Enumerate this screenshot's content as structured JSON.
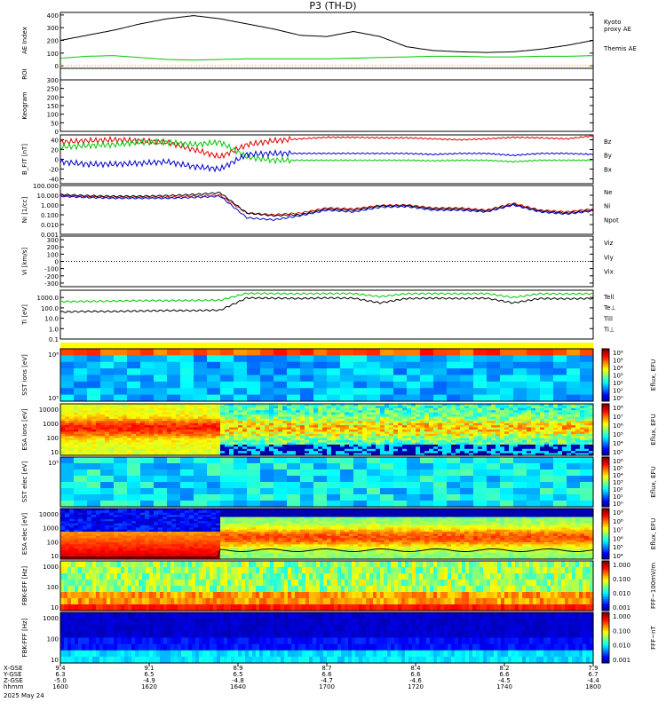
{
  "title": "P3 (TH-D)",
  "colors": {
    "black": "#000000",
    "green": "#00c800",
    "red": "#e00000",
    "blue": "#0000d0",
    "kyoto": "#00c800",
    "orange": "#ff8c00"
  },
  "chart_data": [
    {
      "id": "ae",
      "type": "line",
      "ylabel": "AE Index",
      "ylim": [
        -20,
        420
      ],
      "yticks": [
        "400",
        "300",
        "200",
        "100",
        "0"
      ],
      "ytick_values": [
        400,
        300,
        200,
        100,
        0
      ],
      "x": [
        0,
        0.05,
        0.1,
        0.15,
        0.2,
        0.25,
        0.3,
        0.35,
        0.4,
        0.45,
        0.5,
        0.55,
        0.6,
        0.65,
        0.7,
        0.75,
        0.8,
        0.85,
        0.9,
        0.95,
        1.0
      ],
      "series": [
        {
          "name": "Themis AE",
          "color": "#000000",
          "values": [
            200,
            240,
            280,
            330,
            370,
            395,
            370,
            330,
            290,
            240,
            230,
            270,
            230,
            150,
            120,
            110,
            105,
            110,
            130,
            160,
            200
          ]
        },
        {
          "name": "Kyoto proxy AE",
          "color": "#00c800",
          "values": [
            60,
            75,
            80,
            65,
            50,
            45,
            50,
            55,
            55,
            55,
            55,
            60,
            65,
            70,
            75,
            75,
            70,
            70,
            75,
            75,
            80
          ]
        }
      ],
      "legend": [
        {
          "text": "Kyoto",
          "color": "#00c800"
        },
        {
          "text": "proxy AE",
          "color": "#00c800"
        },
        {
          "text": "Themis AE",
          "color": "#000000"
        }
      ]
    },
    {
      "id": "roi",
      "ylabel": "ROI"
    },
    {
      "id": "keogram",
      "type": "line",
      "ylabel": "Keogram",
      "ylim": [
        0,
        300
      ],
      "yticks": [
        "300",
        "250",
        "200",
        "150",
        "100",
        "50",
        "0"
      ],
      "ytick_values": [
        300,
        250,
        200,
        150,
        100,
        50,
        0
      ]
    },
    {
      "id": "bfield",
      "type": "line",
      "ylabel": "B_FIT [nT]",
      "ylim": [
        -50,
        50
      ],
      "yticks": [
        "40",
        "20",
        "0",
        "-20",
        "-40"
      ],
      "ytick_values": [
        40,
        20,
        0,
        -20,
        -40
      ],
      "x": [
        0,
        0.05,
        0.1,
        0.15,
        0.2,
        0.25,
        0.3,
        0.35,
        0.4,
        0.45,
        0.5,
        0.55,
        0.6,
        0.65,
        0.7,
        0.75,
        0.8,
        0.85,
        0.9,
        0.95,
        1.0
      ],
      "series": [
        {
          "name": "Bz",
          "color": "#e00000",
          "values": [
            35,
            38,
            40,
            38,
            35,
            20,
            5,
            30,
            38,
            42,
            45,
            45,
            44,
            44,
            42,
            40,
            42,
            45,
            44,
            42,
            48
          ]
        },
        {
          "name": "By",
          "color": "#00c800",
          "values": [
            25,
            28,
            30,
            35,
            35,
            30,
            35,
            5,
            -2,
            -2,
            -2,
            -2,
            -2,
            -2,
            -3,
            -2,
            -2,
            -5,
            -2,
            -2,
            -2
          ]
        },
        {
          "name": "Bx",
          "color": "#0000d0",
          "values": [
            -5,
            -10,
            -10,
            -8,
            -5,
            -15,
            -20,
            10,
            12,
            12,
            12,
            12,
            12,
            12,
            10,
            12,
            12,
            8,
            12,
            12,
            10
          ]
        }
      ]
    },
    {
      "id": "density",
      "type": "line",
      "ylabel": "Ni [1/cc]",
      "ylim": [
        0.001,
        100
      ],
      "log": true,
      "yticks": [
        "100.000",
        "10.000",
        "1.000",
        "0.100",
        "0.010",
        "0.001"
      ],
      "ytick_values": [
        100,
        10,
        1,
        0.1,
        0.01,
        0.001
      ],
      "x": [
        0,
        0.05,
        0.1,
        0.15,
        0.2,
        0.25,
        0.3,
        0.35,
        0.4,
        0.45,
        0.5,
        0.55,
        0.6,
        0.65,
        0.7,
        0.75,
        0.8,
        0.85,
        0.9,
        0.95,
        1.0
      ],
      "series": [
        {
          "name": "Ne",
          "color": "#e00000",
          "values": [
            9,
            7,
            6,
            6,
            6,
            8,
            10,
            0.15,
            0.1,
            0.15,
            0.5,
            0.4,
            0.9,
            1.0,
            0.5,
            0.5,
            0.3,
            1.5,
            0.3,
            0.2,
            0.4
          ]
        },
        {
          "name": "Ni",
          "color": "#000000",
          "values": [
            12,
            9,
            8,
            8,
            9,
            12,
            18,
            0.15,
            0.08,
            0.1,
            0.4,
            0.3,
            0.8,
            0.9,
            0.4,
            0.4,
            0.25,
            1.2,
            0.25,
            0.15,
            0.3
          ]
        },
        {
          "name": "Npot",
          "color": "#0000d0",
          "values": [
            8,
            6,
            5,
            5,
            5,
            6,
            8,
            0.05,
            0.03,
            0.08,
            0.3,
            0.2,
            0.6,
            0.7,
            0.3,
            0.3,
            0.2,
            1.0,
            0.2,
            0.12,
            0.25
          ]
        }
      ]
    },
    {
      "id": "velocity",
      "type": "line",
      "ylabel": "Vi [km/s]",
      "ylim": [
        -350,
        350
      ],
      "yticks": [
        "300",
        "200",
        "100",
        "0",
        "-100",
        "-200",
        "-300"
      ],
      "ytick_values": [
        300,
        200,
        100,
        0,
        -100,
        -200,
        -300
      ],
      "legend": [
        {
          "text": "Viz",
          "color": "#e00000"
        },
        {
          "text": "Viy",
          "color": "#00c800"
        },
        {
          "text": "Vix",
          "color": "#0000d0"
        }
      ]
    },
    {
      "id": "temperature",
      "type": "line",
      "ylabel": "Ti [eV]",
      "ylim": [
        0.1,
        5000
      ],
      "log": true,
      "yticks": [
        "1000.0",
        "100.0",
        "10.0",
        "1.0",
        "0.1"
      ],
      "ytick_values": [
        1000,
        100,
        10,
        1,
        0.1
      ],
      "x": [
        0,
        0.05,
        0.1,
        0.15,
        0.2,
        0.25,
        0.3,
        0.35,
        0.4,
        0.45,
        0.5,
        0.55,
        0.6,
        0.65,
        0.7,
        0.75,
        0.8,
        0.85,
        0.9,
        0.95,
        1.0
      ],
      "series": [
        {
          "name": "Ti",
          "color": "#000000",
          "values": [
            40,
            45,
            45,
            50,
            55,
            55,
            60,
            900,
            850,
            800,
            900,
            850,
            300,
            800,
            850,
            800,
            850,
            300,
            800,
            750,
            800
          ]
        },
        {
          "name": "Till",
          "color": "#00c800",
          "values": [
            400,
            420,
            450,
            500,
            500,
            520,
            550,
            2500,
            2400,
            2300,
            2400,
            2400,
            1200,
            2300,
            2400,
            2300,
            2400,
            1000,
            2300,
            2200,
            2300
          ]
        }
      ],
      "legend": [
        {
          "text": "Tell",
          "color": "#000000"
        },
        {
          "text": "Te⊥",
          "color": "#e00000"
        },
        {
          "text": "Till",
          "color": "#00c800"
        },
        {
          "text": "Ti⊥",
          "color": "#0000d0"
        }
      ]
    },
    {
      "id": "sst_ion",
      "type": "heatmap",
      "ylabel": "SST ions [eV]",
      "yticks": [
        "10⁶",
        "10⁵"
      ],
      "colorbar_label": "Eflux, EFU",
      "colorbar_ticks": [
        "10⁶",
        "10⁵",
        "10⁴",
        "10³",
        "10²",
        "10¹",
        "10⁰"
      ]
    },
    {
      "id": "esa_ion",
      "type": "heatmap",
      "ylabel": "ESA ions [eV]",
      "yticks": [
        "10000",
        "1000",
        "100",
        "10"
      ],
      "colorbar_label": "Eflux, EFU",
      "colorbar_ticks": [
        "10⁸",
        "10⁷",
        "10⁶",
        "10⁵",
        "10⁴",
        "10³"
      ]
    },
    {
      "id": "sst_elec",
      "type": "heatmap",
      "ylabel": "SST elec [eV]",
      "yticks": [
        "10⁵"
      ],
      "colorbar_label": "Eflux, EFU",
      "colorbar_ticks": [
        "10⁶",
        "10⁵",
        "10⁴",
        "10³",
        "10²",
        "10¹",
        "10⁰"
      ]
    },
    {
      "id": "esa_elec",
      "type": "heatmap",
      "ylabel": "ESA elec [eV]",
      "yticks": [
        "10000",
        "1000",
        "100",
        "10"
      ],
      "colorbar_label": "Eflux, EFU",
      "colorbar_ticks": [
        "10⁹",
        "10⁸",
        "10⁷",
        "10⁶",
        "10⁵",
        "10⁴"
      ]
    },
    {
      "id": "fbk_e",
      "type": "heatmap",
      "ylabel": "FBK-EFF [Hz]",
      "yticks": [
        "1000",
        "100",
        "10"
      ],
      "colorbar_label": "FFF~100mV/m",
      "colorbar_ticks": [
        "1.000",
        "0.100",
        "0.010",
        "0.001"
      ]
    },
    {
      "id": "fbk_b",
      "type": "heatmap",
      "ylabel": "FBK-FFF [Hz]",
      "yticks": [
        "1000",
        "100",
        "10"
      ],
      "colorbar_label": "FFF~nT",
      "colorbar_ticks": [
        "1.000",
        "0.100",
        "0.010",
        "0.001"
      ]
    }
  ],
  "xaxis": {
    "row_labels": [
      "X-GSE",
      "Y-GSE",
      "Z-GSE",
      "hhmm",
      "2025 May 24"
    ],
    "ticks": [
      {
        "x": "9.4",
        "y": "6.3",
        "z": "-5.0",
        "t": "1600"
      },
      {
        "x": "9.1",
        "y": "6.5",
        "z": "-4.9",
        "t": "1620"
      },
      {
        "x": "8.9",
        "y": "6.5",
        "z": "-4.8",
        "t": "1640"
      },
      {
        "x": "8.7",
        "y": "6.6",
        "z": "-4.7",
        "t": "1700"
      },
      {
        "x": "8.4",
        "y": "6.6",
        "z": "-4.6",
        "t": "1720"
      },
      {
        "x": "8.2",
        "y": "6.6",
        "z": "-4.5",
        "t": "1740"
      },
      {
        "x": "7.9",
        "y": "6.7",
        "z": "-4.4",
        "t": "1800"
      }
    ]
  }
}
